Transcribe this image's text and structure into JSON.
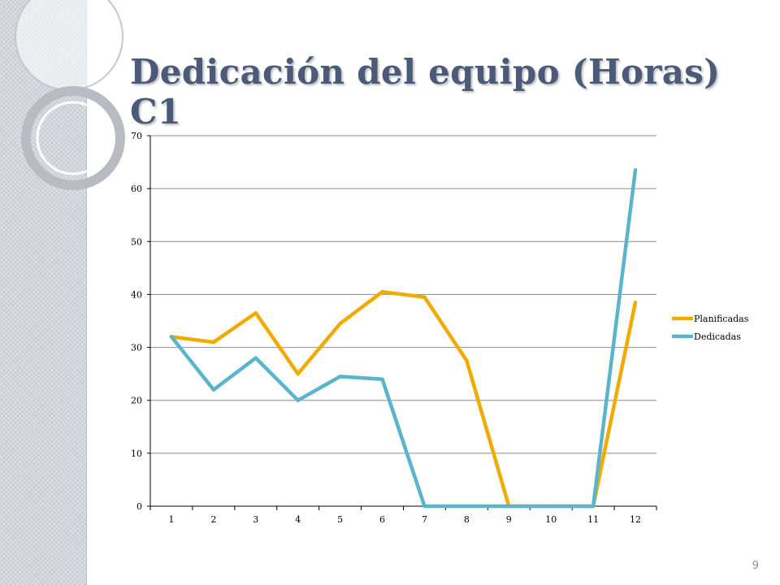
{
  "slide": {
    "title": "Dedicación del equipo (Horas) C1",
    "page_number": "9"
  },
  "colors": {
    "title": "#4a5a78",
    "planificadas": "#f0aa00",
    "dedicadas": "#5ab4cc",
    "gridline": "#8c8c8c"
  },
  "chart_data": {
    "type": "line",
    "title": "",
    "xlabel": "",
    "ylabel": "",
    "categories": [
      "1",
      "2",
      "3",
      "4",
      "5",
      "6",
      "7",
      "8",
      "9",
      "10",
      "11",
      "12"
    ],
    "ylim": [
      0,
      70
    ],
    "yticks": [
      0,
      10,
      20,
      30,
      40,
      50,
      60,
      70
    ],
    "grid": true,
    "legend_position": "right",
    "series": [
      {
        "name": "Planificadas",
        "color": "#f0aa00",
        "values": [
          32,
          31,
          36.5,
          25,
          34.5,
          40.5,
          39.5,
          27.5,
          0,
          0,
          0,
          38.5
        ]
      },
      {
        "name": "Dedicadas",
        "color": "#5ab4cc",
        "values": [
          32,
          22,
          28,
          20,
          24.5,
          24,
          0,
          0,
          0,
          0,
          0,
          63.5
        ]
      }
    ]
  }
}
